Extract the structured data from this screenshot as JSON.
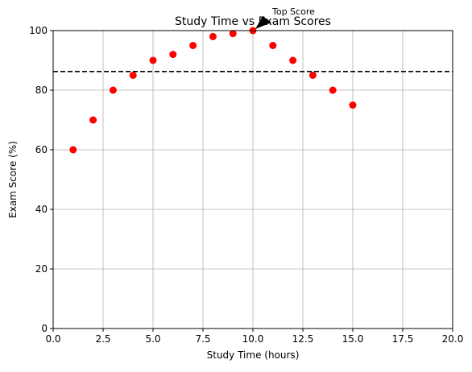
{
  "chart_data": {
    "type": "scatter",
    "title": "Study Time vs Exam Scores",
    "xlabel": "Study Time (hours)",
    "ylabel": "Exam Score (%)",
    "xlim": [
      0,
      20
    ],
    "ylim": [
      0,
      100
    ],
    "xticks": [
      0,
      2.5,
      5,
      7.5,
      10,
      12.5,
      15,
      17.5,
      20
    ],
    "xtick_labels": [
      "0.0",
      "2.5",
      "5.0",
      "7.5",
      "10.0",
      "12.5",
      "15.0",
      "17.5",
      "20.0"
    ],
    "yticks": [
      0,
      20,
      40,
      60,
      80,
      100
    ],
    "ytick_labels": [
      "0",
      "20",
      "40",
      "60",
      "80",
      "100"
    ],
    "grid": true,
    "marker_color": "#ff0000",
    "x": [
      1,
      2,
      3,
      4,
      5,
      6,
      7,
      8,
      9,
      10,
      11,
      12,
      13,
      14,
      15
    ],
    "y": [
      60,
      70,
      80,
      85,
      90,
      92,
      95,
      98,
      99,
      100,
      95,
      90,
      85,
      80,
      75
    ],
    "mean_line": {
      "y": 86.27,
      "style": "dashed",
      "color": "#000000"
    },
    "annotation": {
      "text": "Top Score",
      "point": [
        10,
        100
      ]
    }
  }
}
